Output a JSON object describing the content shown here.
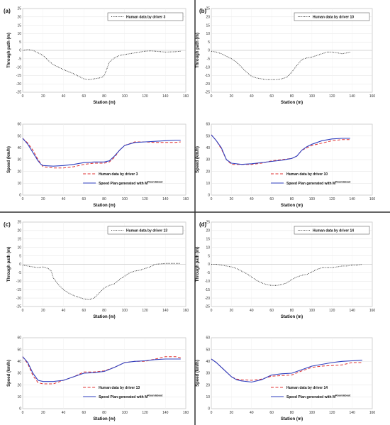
{
  "figure": {
    "colors": {
      "human_path": "#333333",
      "human_speed": "#e03030",
      "plan": "#2f3fbf",
      "divider": "#333333"
    }
  },
  "chart_data": [
    {
      "type": "line",
      "panel": "(a)",
      "kind": "path",
      "xlabel": "Station (m)",
      "ylabel": "Through path (m)",
      "xlim": [
        0,
        160
      ],
      "ylim": [
        -25,
        25
      ],
      "xticks": [
        "0",
        "20",
        "40",
        "60",
        "80",
        "100",
        "120",
        "140",
        "160"
      ],
      "yticks": [
        "-25",
        "-20",
        "-15",
        "-10",
        "-5",
        "0",
        "5",
        "10",
        "15",
        "20",
        "25"
      ],
      "legend_placement": "top-right",
      "series": [
        {
          "name": "Human data by driver 3",
          "style": "dotted",
          "color": "#333333",
          "x": [
            0,
            5,
            10,
            15,
            20,
            25,
            30,
            40,
            50,
            55,
            60,
            65,
            70,
            75,
            78,
            80,
            82,
            85,
            90,
            95,
            100,
            110,
            120,
            125,
            130,
            140,
            150,
            155
          ],
          "y": [
            0,
            0.5,
            0,
            -1.5,
            -3,
            -6,
            -8.5,
            -11.5,
            -14,
            -15.5,
            -17,
            -17.5,
            -17,
            -16.5,
            -16,
            -15,
            -12,
            -7,
            -4.5,
            -3,
            -2.5,
            -1.5,
            -0.5,
            -0.3,
            -0.5,
            -1,
            -0.8,
            -0.5
          ]
        }
      ]
    },
    {
      "type": "line",
      "panel": "(a)",
      "kind": "speed",
      "xlabel": "Station (m)",
      "ylabel": "Speed (km/h)",
      "xlim": [
        0,
        160
      ],
      "ylim": [
        0,
        60
      ],
      "xticks": [
        "0",
        "20",
        "40",
        "60",
        "80",
        "100",
        "120",
        "140",
        "160"
      ],
      "yticks": [
        "0",
        "10",
        "20",
        "30",
        "40",
        "50",
        "60"
      ],
      "legend_placement": "bottom-right",
      "series": [
        {
          "name": "Human data by driver 3",
          "style": "dashed",
          "color": "#e03030",
          "x": [
            0,
            5,
            10,
            15,
            20,
            30,
            40,
            50,
            60,
            70,
            80,
            85,
            90,
            95,
            100,
            110,
            120,
            130,
            140,
            150,
            155
          ],
          "y": [
            48,
            44,
            38,
            30,
            24,
            23,
            23,
            24,
            26,
            27,
            27,
            28,
            32,
            38,
            42,
            45,
            45,
            44.5,
            44.5,
            44.5,
            45
          ]
        },
        {
          "name": "Speed Plan generated with M",
          "name_superscript": "Roundabout",
          "style": "solid",
          "color": "#2f3fbf",
          "x": [
            0,
            5,
            10,
            15,
            18,
            20,
            30,
            40,
            50,
            60,
            70,
            80,
            85,
            90,
            95,
            100,
            110,
            120,
            130,
            140,
            150,
            155
          ],
          "y": [
            48,
            43,
            36,
            29,
            26,
            25,
            24.5,
            25,
            26,
            27.5,
            28,
            28,
            29,
            33,
            38,
            42,
            44.5,
            45,
            45.5,
            46,
            46.5,
            46.5
          ]
        }
      ]
    },
    {
      "type": "line",
      "panel": "(b)",
      "kind": "path",
      "xlabel": "Station (m)",
      "ylabel": "Through path (m)",
      "xlim": [
        0,
        160
      ],
      "ylim": [
        -25,
        25
      ],
      "xticks": [
        "0",
        "20",
        "40",
        "60",
        "80",
        "100",
        "120",
        "140",
        "160"
      ],
      "yticks": [
        "-25",
        "-20",
        "-15",
        "-10",
        "-5",
        "0",
        "5",
        "10",
        "15",
        "20",
        "25"
      ],
      "legend_placement": "top-right",
      "series": [
        {
          "name": "Human data by driver 10",
          "style": "dotted",
          "color": "#333333",
          "x": [
            0,
            5,
            10,
            15,
            20,
            25,
            30,
            35,
            40,
            45,
            50,
            55,
            60,
            65,
            70,
            75,
            80,
            85,
            90,
            95,
            100,
            105,
            110,
            115,
            120,
            125,
            130,
            135,
            138
          ],
          "y": [
            -0.5,
            -1,
            -2,
            -3.5,
            -5,
            -7,
            -10,
            -13,
            -15.5,
            -16.5,
            -17,
            -17.5,
            -17.5,
            -17.5,
            -17,
            -16,
            -13,
            -9,
            -5.5,
            -4.5,
            -4,
            -3,
            -2,
            -1,
            -1,
            -1.5,
            -2,
            -1.5,
            -1
          ]
        }
      ]
    },
    {
      "type": "line",
      "panel": "(b)",
      "kind": "speed",
      "xlabel": "Station (m)",
      "ylabel": "Speed (km/h)",
      "xlim": [
        0,
        160
      ],
      "ylim": [
        0,
        60
      ],
      "xticks": [
        "0",
        "20",
        "40",
        "60",
        "80",
        "100",
        "120",
        "140",
        "160"
      ],
      "yticks": [
        "0",
        "10",
        "20",
        "30",
        "40",
        "50",
        "60"
      ],
      "legend_placement": "bottom-right",
      "series": [
        {
          "name": "Human data by driver 10",
          "style": "dashed",
          "color": "#e03030",
          "x": [
            0,
            5,
            10,
            15,
            20,
            30,
            40,
            50,
            60,
            70,
            80,
            85,
            90,
            95,
            100,
            110,
            120,
            130,
            138
          ],
          "y": [
            51,
            46,
            39,
            30,
            26,
            26,
            26,
            27,
            29,
            30,
            31,
            33,
            38,
            40,
            42,
            44,
            46,
            47,
            47
          ]
        },
        {
          "name": "Speed Plan generated with M",
          "name_superscript": "Roundabout",
          "style": "solid",
          "color": "#2f3fbf",
          "x": [
            0,
            5,
            10,
            15,
            20,
            30,
            40,
            50,
            60,
            70,
            80,
            85,
            90,
            95,
            100,
            110,
            120,
            130,
            138
          ],
          "y": [
            51,
            46,
            40,
            30,
            27,
            26,
            26.5,
            27.5,
            28.5,
            29.5,
            31,
            33,
            38,
            41,
            43,
            46,
            47.5,
            48,
            48
          ]
        }
      ]
    },
    {
      "type": "line",
      "panel": "(c)",
      "kind": "path",
      "xlabel": "Station (m)",
      "ylabel": "Through path (m)",
      "xlim": [
        0,
        160
      ],
      "ylim": [
        -25,
        25
      ],
      "xticks": [
        "0",
        "20",
        "40",
        "60",
        "80",
        "100",
        "120",
        "140",
        "160"
      ],
      "yticks": [
        "-25",
        "-20",
        "-15",
        "-10",
        "-5",
        "0",
        "5",
        "10",
        "15",
        "20",
        "25"
      ],
      "legend_placement": "top-right",
      "series": [
        {
          "name": "Human data by driver 13",
          "style": "dotted",
          "color": "#333333",
          "x": [
            0,
            5,
            10,
            15,
            20,
            25,
            28,
            30,
            35,
            40,
            45,
            50,
            55,
            60,
            65,
            70,
            75,
            80,
            85,
            90,
            95,
            100,
            105,
            110,
            115,
            120,
            125,
            130,
            140,
            150,
            155
          ],
          "y": [
            -0.5,
            -1,
            -1.5,
            -2,
            -1.5,
            -2.5,
            -4,
            -8,
            -12,
            -15,
            -17,
            -18.5,
            -19.5,
            -20.5,
            -21,
            -20,
            -17,
            -14,
            -12.5,
            -11.5,
            -9,
            -7,
            -5,
            -4,
            -3.5,
            -2.5,
            -1.5,
            0,
            0.5,
            0.5,
            0.5
          ]
        }
      ]
    },
    {
      "type": "line",
      "panel": "(c)",
      "kind": "speed",
      "xlabel": "Station (m)",
      "ylabel": "Speed (km/h)",
      "xlim": [
        0,
        160
      ],
      "ylim": [
        0,
        60
      ],
      "xticks": [
        "0",
        "20",
        "40",
        "60",
        "80",
        "100",
        "120",
        "140",
        "160"
      ],
      "yticks": [
        "0",
        "10",
        "20",
        "30",
        "40",
        "50",
        "60"
      ],
      "legend_placement": "bottom-right",
      "series": [
        {
          "name": "Human data by driver 13",
          "style": "dashed",
          "color": "#e03030",
          "x": [
            0,
            5,
            10,
            15,
            20,
            30,
            40,
            50,
            60,
            70,
            80,
            90,
            100,
            110,
            120,
            130,
            140,
            150,
            155
          ],
          "y": [
            44,
            38,
            28,
            22,
            21,
            21,
            24,
            27,
            31,
            31,
            32,
            35,
            39,
            40,
            40,
            42,
            44,
            44,
            43
          ]
        },
        {
          "name": "Speed Plan generated with M",
          "name_superscript": "Roundabout",
          "style": "solid",
          "color": "#2f3fbf",
          "x": [
            0,
            5,
            10,
            15,
            20,
            30,
            40,
            50,
            60,
            70,
            80,
            90,
            100,
            110,
            120,
            130,
            140,
            150,
            155
          ],
          "y": [
            44,
            39,
            30,
            24,
            23,
            23,
            24,
            27,
            30,
            30.5,
            31.5,
            35,
            39,
            40,
            40.5,
            41.5,
            42,
            42,
            42
          ]
        }
      ]
    },
    {
      "type": "line",
      "panel": "(d)",
      "kind": "path",
      "xlabel": "Station (m)",
      "ylabel": "Through path (m)",
      "xlim": [
        0,
        160
      ],
      "ylim": [
        -25,
        25
      ],
      "xticks": [
        "0",
        "20",
        "40",
        "60",
        "80",
        "100",
        "120",
        "140",
        "160"
      ],
      "yticks": [
        "-25",
        "-20",
        "-15",
        "-10",
        "-5",
        "0",
        "5",
        "10",
        "15",
        "20",
        "25"
      ],
      "legend_placement": "top-right",
      "series": [
        {
          "name": "Human data by driver 14",
          "style": "dotted",
          "color": "#333333",
          "x": [
            0,
            5,
            10,
            15,
            20,
            25,
            30,
            35,
            40,
            45,
            50,
            55,
            60,
            65,
            70,
            75,
            80,
            85,
            90,
            95,
            100,
            105,
            110,
            115,
            120,
            125,
            130,
            135,
            140,
            145,
            150
          ],
          "y": [
            0,
            0,
            -0.5,
            -1,
            -1.5,
            -2.5,
            -4,
            -5.5,
            -7.5,
            -9.5,
            -11,
            -12,
            -12.5,
            -12.5,
            -12,
            -11,
            -9,
            -7.5,
            -6.5,
            -6,
            -4.5,
            -3,
            -2,
            -2,
            -2,
            -1.5,
            -1,
            -1,
            -0.5,
            -0.5,
            0
          ]
        }
      ]
    },
    {
      "type": "line",
      "panel": "(d)",
      "kind": "speed",
      "xlabel": "Station (m)",
      "ylabel": "Speed (km/h)",
      "xlim": [
        0,
        160
      ],
      "ylim": [
        0,
        60
      ],
      "xticks": [
        "0",
        "20",
        "40",
        "60",
        "80",
        "100",
        "120",
        "140",
        "160"
      ],
      "yticks": [
        "0",
        "10",
        "20",
        "30",
        "40",
        "50",
        "60"
      ],
      "legend_placement": "bottom-right",
      "series": [
        {
          "name": "Human data by driver 14",
          "style": "dashed",
          "color": "#e03030",
          "x": [
            0,
            5,
            10,
            15,
            20,
            25,
            30,
            40,
            50,
            60,
            70,
            80,
            90,
            100,
            110,
            120,
            130,
            140,
            150
          ],
          "y": [
            42,
            39,
            35,
            31,
            27,
            25,
            24.5,
            24,
            25,
            27.5,
            28,
            28.5,
            32,
            35,
            36,
            36.5,
            37,
            39,
            39
          ]
        },
        {
          "name": "Speed Plan generated with M",
          "name_superscript": "Roundabout",
          "style": "solid",
          "color": "#2f3fbf",
          "x": [
            0,
            5,
            10,
            15,
            20,
            25,
            30,
            40,
            50,
            60,
            70,
            80,
            90,
            100,
            110,
            120,
            130,
            140,
            150
          ],
          "y": [
            42,
            39,
            35,
            31,
            27,
            24.5,
            23.5,
            22.5,
            24.5,
            28.5,
            29.5,
            30,
            33,
            36,
            37.5,
            39,
            40,
            40.5,
            41
          ]
        }
      ]
    }
  ]
}
